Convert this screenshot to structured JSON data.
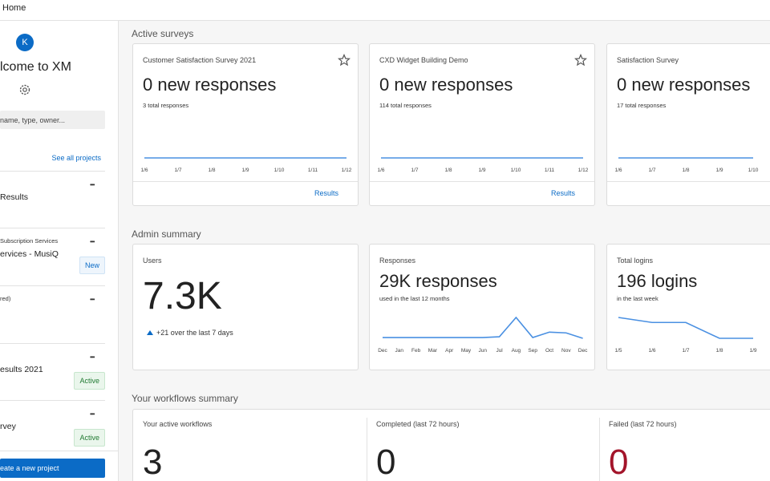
{
  "top_bar": {
    "title": "Home"
  },
  "sidebar": {
    "avatar": "K",
    "welcome": "lcome to XM",
    "search_placeholder": "name, type, owner...",
    "see_all": "See all projects",
    "projects": [
      {
        "name": "Results",
        "menu": "•••"
      },
      {
        "subtitle": "Subscription Services",
        "name": "ervices - MusiQ",
        "badge": "New",
        "menu": "•••"
      },
      {
        "subtitle": "red)",
        "menu": "•••"
      },
      {
        "name": "esults 2021",
        "badge": "Active",
        "menu": "•••"
      },
      {
        "name": "rvey",
        "badge": "Active",
        "menu": "•••"
      }
    ],
    "create_button": "eate a new project"
  },
  "main": {
    "active_surveys": {
      "heading": "Active surveys",
      "cards": [
        {
          "title": "Customer Satisfaction Survey 2021",
          "headline": "0 new responses",
          "subtext": "3 total responses",
          "chart": {
            "type": "line",
            "color": "#4a90e2",
            "categories": [
              "1/6",
              "1/7",
              "1/8",
              "1/9",
              "1/10",
              "1/11",
              "1/12"
            ],
            "values": [
              0,
              0,
              0,
              0,
              0,
              0,
              0
            ]
          },
          "link": "Results"
        },
        {
          "title": "CXD Widget Building Demo",
          "headline": "0 new responses",
          "subtext": "114 total responses",
          "chart": {
            "type": "line",
            "color": "#4a90e2",
            "categories": [
              "1/6",
              "1/7",
              "1/8",
              "1/9",
              "1/10",
              "1/11",
              "1/12"
            ],
            "values": [
              0,
              0,
              0,
              0,
              0,
              0,
              0
            ]
          },
          "link": "Results"
        },
        {
          "title": "Satisfaction Survey",
          "headline": "0 new responses",
          "subtext": "17 total responses",
          "chart": {
            "type": "line",
            "color": "#4a90e2",
            "categories": [
              "1/6",
              "1/7",
              "1/8",
              "1/9",
              "1/10"
            ],
            "values": [
              0,
              0,
              0,
              0,
              0
            ]
          }
        }
      ]
    },
    "admin_summary": {
      "heading": "Admin summary",
      "users": {
        "title": "Users",
        "value": "7.3K",
        "change": "+21 over the last 7 days"
      },
      "responses": {
        "title": "Responses",
        "headline": "29K responses",
        "subtext": "used in the last 12 months",
        "chart": {
          "type": "line",
          "color": "#4a90e2",
          "categories": [
            "Dec",
            "Jan",
            "Feb",
            "Mar",
            "Apr",
            "May",
            "Jun",
            "Jul",
            "Aug",
            "Sep",
            "Oct",
            "Nov",
            "Dec"
          ],
          "values": [
            1,
            1,
            1,
            1,
            1,
            1,
            1,
            2,
            27,
            1,
            8,
            7,
            0
          ]
        }
      },
      "logins": {
        "title": "Total logins",
        "headline": "196 logins",
        "subtext": "in the last week",
        "chart": {
          "type": "line",
          "color": "#4a90e2",
          "categories": [
            "1/5",
            "1/6",
            "1/7",
            "1/8",
            "1/9"
          ],
          "values": [
            25,
            19,
            19,
            0,
            0
          ]
        }
      }
    },
    "workflows": {
      "heading": "Your workflows summary",
      "items": [
        {
          "label": "Your active workflows",
          "value": 3
        },
        {
          "label": "Completed (last 72 hours)",
          "value": 0
        },
        {
          "label": "Failed (last 72 hours)",
          "value": 0,
          "color": "#a3142a"
        }
      ]
    }
  }
}
